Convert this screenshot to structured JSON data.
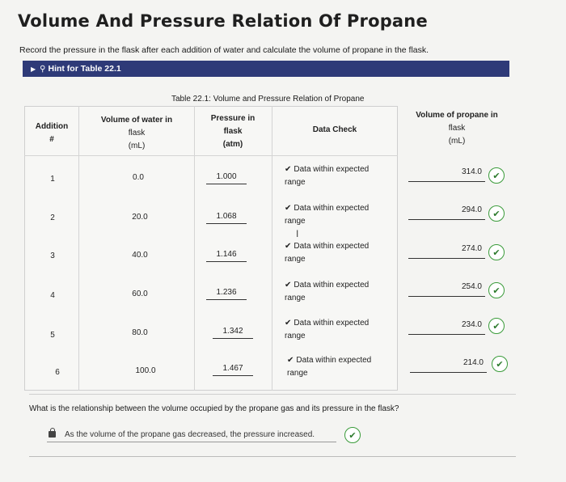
{
  "page": {
    "title": "Volume And Pressure Relation Of Propane",
    "instruction": "Record the pressure in the flask after each addition of water and calculate the volume of propane in the flask."
  },
  "hint": {
    "label": "Hint for Table 22.1",
    "icon": "lightbulb-icon"
  },
  "table": {
    "caption": "Table 22.1: Volume and Pressure Relation of Propane",
    "headers": {
      "addition_line1": "Addition",
      "addition_line2": "#",
      "water_line1": "Volume of water in",
      "water_line2": "flask",
      "water_line3": "(mL)",
      "pressure_line1": "Pressure in",
      "pressure_line2": "flask",
      "pressure_line3": "(atm)",
      "check": "Data Check",
      "propane_line1": "Volume of propane in",
      "propane_line2": "flask",
      "propane_line3": "(mL)"
    },
    "rows": [
      {
        "addition": "1",
        "water": "0.0",
        "pressure": "1.000",
        "check_line1": "Data within expected",
        "check_line2": "range",
        "propane": "314.0"
      },
      {
        "addition": "2",
        "water": "20.0",
        "pressure": "1.068",
        "check_line1": "Data within expected",
        "check_line2": "range",
        "propane": "294.0"
      },
      {
        "addition": "3",
        "water": "40.0",
        "pressure": "1.146",
        "check_line1": "Data within expected",
        "check_line2": "range",
        "propane": "274.0"
      },
      {
        "addition": "4",
        "water": "60.0",
        "pressure": "1.236",
        "check_line1": "Data within expected",
        "check_line2": "range",
        "propane": "254.0"
      },
      {
        "addition": "5",
        "water": "80.0",
        "pressure": "1.342",
        "check_line1": "Data within expected",
        "check_line2": "range",
        "propane": "234.0"
      },
      {
        "addition": "6",
        "water": "100.0",
        "pressure": "1.467",
        "check_line1": "Data within expected",
        "check_line2": "range",
        "propane": "214.0"
      }
    ]
  },
  "question": {
    "text": "What is the relationship between the volume occupied by the propane gas and its pressure in the flask?",
    "answer": "As the volume of the propane gas decreased, the pressure increased."
  },
  "colors": {
    "hint_bar": "#2e3a78",
    "correct_green": "#3a9b3a"
  }
}
